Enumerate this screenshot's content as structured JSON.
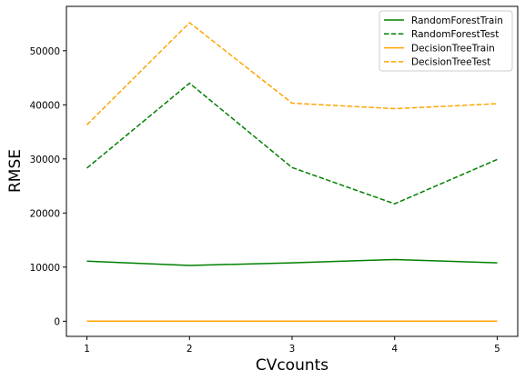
{
  "chart_data": {
    "type": "line",
    "title": "",
    "xlabel": "CVcounts",
    "ylabel": "RMSE",
    "x": [
      1,
      2,
      3,
      4,
      5
    ],
    "xticks": [
      "1",
      "2",
      "3",
      "4",
      "5"
    ],
    "yticks": [
      "0",
      "10000",
      "20000",
      "30000",
      "40000",
      "50000"
    ],
    "xlim": [
      0.8,
      5.2
    ],
    "ylim": [
      -2800,
      58200
    ],
    "grid": false,
    "legend_position": "top-right",
    "series": [
      {
        "name": "RandomForestTrain",
        "color": "#008000",
        "dash": "solid",
        "values": [
          11100,
          10300,
          10800,
          11400,
          10800
        ]
      },
      {
        "name": "RandomForestTest",
        "color": "#008000",
        "dash": "dashed",
        "values": [
          28300,
          44000,
          28400,
          21700,
          29900
        ]
      },
      {
        "name": "DecisionTreeTrain",
        "color": "#ffa500",
        "dash": "solid",
        "values": [
          0,
          0,
          0,
          0,
          0
        ]
      },
      {
        "name": "DecisionTreeTest",
        "color": "#ffa500",
        "dash": "dashed",
        "values": [
          36300,
          55200,
          40300,
          39300,
          40200
        ]
      }
    ]
  }
}
